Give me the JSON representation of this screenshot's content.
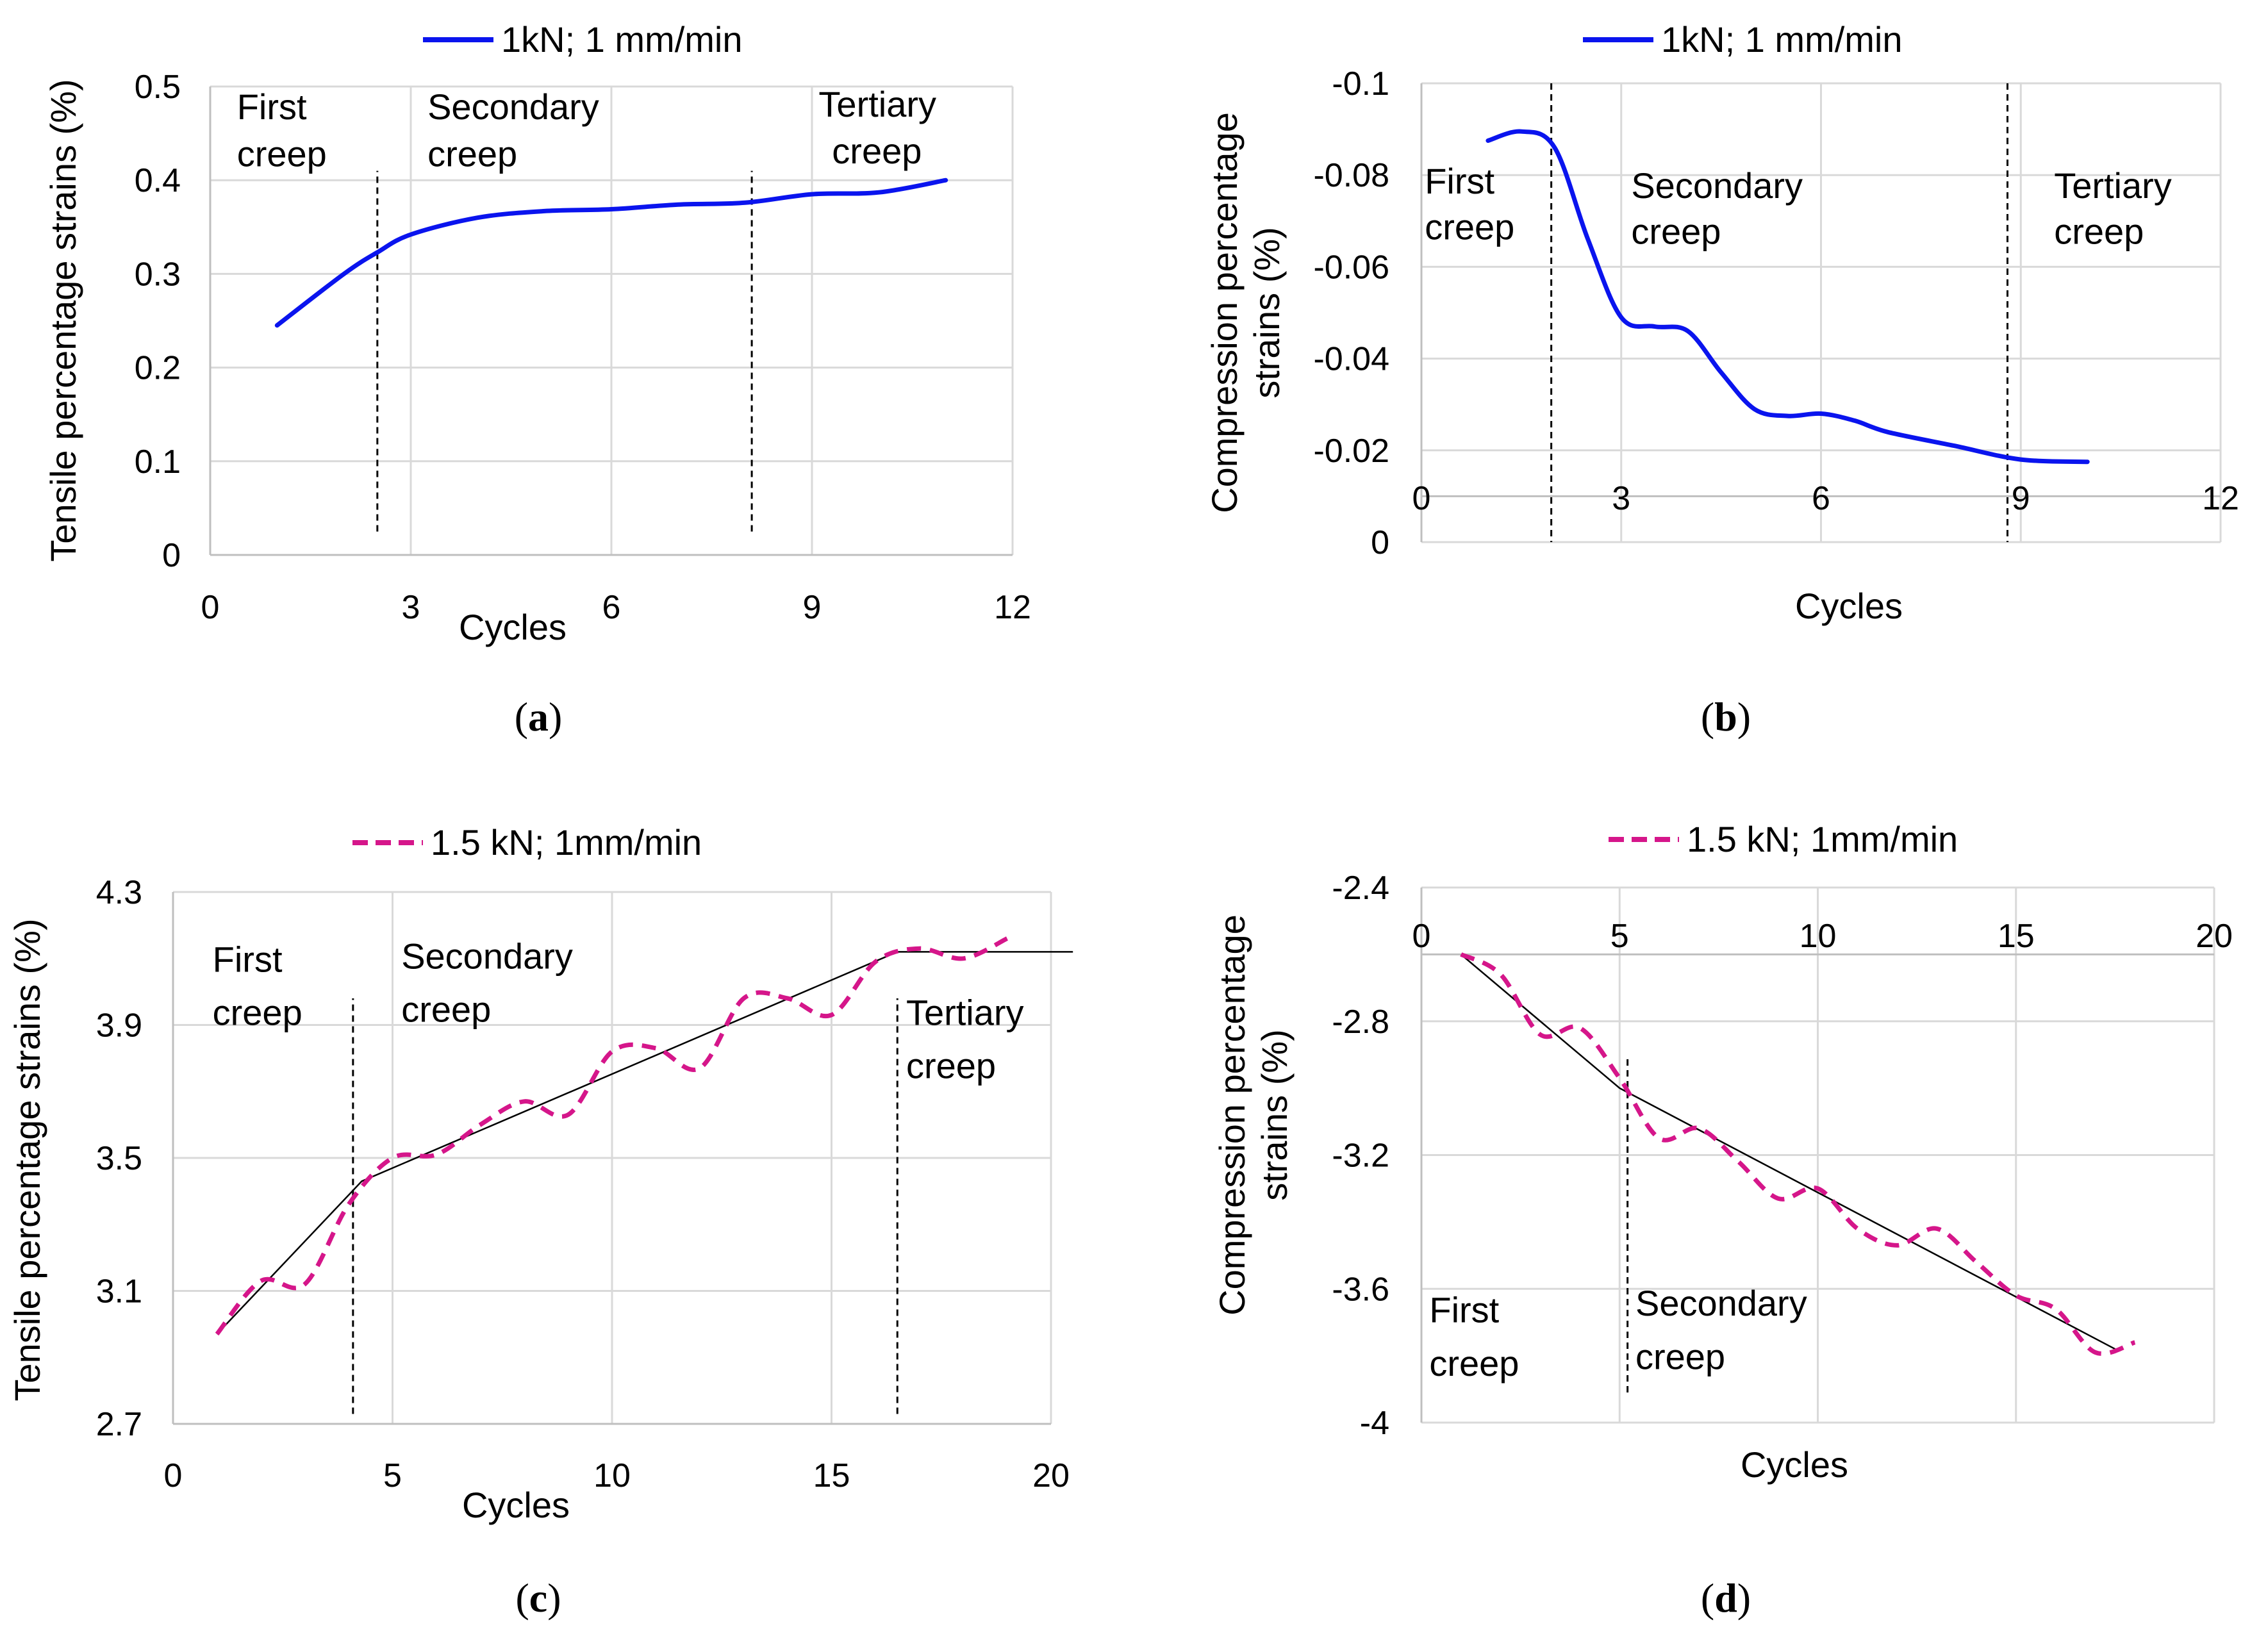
{
  "colors": {
    "series_solid": "#0a14ee",
    "series_dashed": "#d5168a",
    "grid": "#d9d9d9",
    "axis": "#bfbfbf",
    "text": "#000000"
  },
  "chart_data": [
    {
      "type": "line",
      "panel_label": "a",
      "title": "",
      "xlabel": "Cycles",
      "ylabel": "Tensile percentage strains (%)",
      "xlim": [
        0,
        12
      ],
      "ylim": [
        0,
        0.5
      ],
      "x_ticks": [
        0,
        3,
        6,
        9,
        12
      ],
      "y_ticks": [
        0,
        0.1,
        0.2,
        0.3,
        0.4,
        0.5
      ],
      "y_tick_labels": [
        "0",
        "0.1",
        "0.2",
        "0.3",
        "0.4",
        "0.5"
      ],
      "grid": true,
      "legend": "top",
      "series": [
        {
          "name": "1kN; 1 mm/min",
          "style": "solid",
          "color": "#0a14ee",
          "x": [
            1,
            2,
            2.5,
            3,
            4,
            5,
            6,
            7,
            8,
            9,
            10,
            11
          ],
          "y": [
            0.245,
            0.3,
            0.323,
            0.342,
            0.36,
            0.367,
            0.369,
            0.374,
            0.376,
            0.385,
            0.387,
            0.4
          ]
        }
      ],
      "trend_lines": [],
      "vlines": [
        2.5,
        8.1
      ],
      "vline_range": [
        0.025,
        0.41
      ],
      "annotations": [
        {
          "text": "First",
          "x": 0.4,
          "y": 0.465
        },
        {
          "text": "creep",
          "x": 0.4,
          "y": 0.415
        },
        {
          "text": "Secondary",
          "x": 3.25,
          "y": 0.465
        },
        {
          "text": "creep",
          "x": 3.25,
          "y": 0.415
        },
        {
          "text": "Tertiary",
          "x": 9.1,
          "y": 0.468
        },
        {
          "text": "creep",
          "x": 9.3,
          "y": 0.418
        }
      ]
    },
    {
      "type": "line",
      "panel_label": "b",
      "title": "",
      "xlabel": "Cycles",
      "ylabel": "Compression percentage strains (%)",
      "xlim": [
        0,
        12
      ],
      "ylim": [
        0,
        -0.1
      ],
      "x_axis_at_y": -0.01,
      "x_ticks": [
        0,
        3,
        6,
        9,
        12
      ],
      "y_ticks": [
        0,
        -0.02,
        -0.04,
        -0.06,
        -0.08,
        -0.1
      ],
      "y_tick_labels": [
        "0",
        "-0.02",
        "-0.04",
        "-0.06",
        "-0.08",
        "-0.1"
      ],
      "grid": true,
      "legend": "top",
      "series": [
        {
          "name": "1kN; 1 mm/min",
          "style": "solid",
          "color": "#0a14ee",
          "x": [
            1,
            1.5,
            2,
            2.5,
            3,
            3.5,
            4,
            4.5,
            5,
            5.5,
            6,
            6.5,
            7,
            8,
            9,
            10
          ],
          "y": [
            -0.0875,
            -0.0895,
            -0.086,
            -0.066,
            -0.049,
            -0.047,
            -0.046,
            -0.037,
            -0.029,
            -0.0275,
            -0.028,
            -0.0265,
            -0.024,
            -0.021,
            -0.018,
            -0.0175
          ]
        }
      ],
      "trend_lines": [],
      "vlines": [
        1.95,
        8.8
      ],
      "vline_range": [
        -0.1,
        0
      ],
      "annotations": [
        {
          "text": "First",
          "x": 0.05,
          "y": -0.076
        },
        {
          "text": "creep",
          "x": 0.05,
          "y": -0.066
        },
        {
          "text": "Secondary",
          "x": 3.15,
          "y": -0.075
        },
        {
          "text": "creep",
          "x": 3.15,
          "y": -0.065
        },
        {
          "text": "Tertiary",
          "x": 9.5,
          "y": -0.075
        },
        {
          "text": "creep",
          "x": 9.5,
          "y": -0.065
        }
      ]
    },
    {
      "type": "line",
      "panel_label": "c",
      "title": "",
      "xlabel": "Cycles",
      "ylabel": "Tensile percentage strains (%)",
      "xlim": [
        0,
        20
      ],
      "ylim": [
        2.7,
        4.3
      ],
      "x_ticks": [
        0,
        5,
        10,
        15,
        20
      ],
      "y_ticks": [
        2.7,
        3.1,
        3.5,
        3.9,
        4.3
      ],
      "y_tick_labels": [
        "2.7",
        "3.1",
        "3.5",
        "3.9",
        "4.3"
      ],
      "grid": true,
      "legend": "top",
      "series": [
        {
          "name": "1.5 kN; 1mm/min",
          "style": "dashed",
          "color": "#d5168a",
          "x": [
            1,
            2,
            3,
            4,
            5,
            6,
            7,
            8,
            9,
            10,
            11,
            12,
            13,
            14,
            15,
            16,
            17,
            18,
            19
          ],
          "y": [
            2.97,
            3.13,
            3.12,
            3.36,
            3.5,
            3.51,
            3.6,
            3.67,
            3.63,
            3.82,
            3.83,
            3.77,
            3.98,
            3.98,
            3.93,
            4.09,
            4.13,
            4.1,
            4.16
          ]
        }
      ],
      "trend_lines": [
        [
          [
            1,
            2.97
          ],
          [
            4.3,
            3.43
          ],
          [
            16.5,
            4.12
          ],
          [
            20.5,
            4.12
          ]
        ]
      ],
      "vlines": [
        4.1,
        16.5
      ],
      "vline_range": [
        2.73,
        3.98
      ],
      "annotations": [
        {
          "text": "First",
          "x": 0.9,
          "y": 4.06
        },
        {
          "text": "creep",
          "x": 0.9,
          "y": 3.9
        },
        {
          "text": "Secondary",
          "x": 5.2,
          "y": 4.07
        },
        {
          "text": "creep",
          "x": 5.2,
          "y": 3.91
        },
        {
          "text": "Tertiary",
          "x": 16.7,
          "y": 3.9
        },
        {
          "text": "creep",
          "x": 16.7,
          "y": 3.74
        }
      ]
    },
    {
      "type": "line",
      "panel_label": "d",
      "title": "",
      "xlabel": "Cycles",
      "ylabel": "Compression percentage strains (%)",
      "xlim": [
        0,
        20
      ],
      "ylim": [
        -4,
        -2.4
      ],
      "x_axis_at_y": -2.6,
      "x_ticks": [
        0,
        5,
        10,
        15,
        20
      ],
      "y_ticks": [
        -4,
        -3.6,
        -3.2,
        -2.8,
        -2.4
      ],
      "y_tick_labels": [
        "-4",
        "-3.6",
        "-3.2",
        "-2.8",
        "-2.4"
      ],
      "grid": true,
      "legend": "top",
      "series": [
        {
          "name": "1.5 kN; 1mm/min",
          "style": "dashed",
          "color": "#d5168a",
          "x": [
            1,
            2,
            3,
            4,
            5,
            6,
            7,
            8,
            9,
            10,
            11,
            12,
            13,
            14,
            15,
            16,
            17,
            18
          ],
          "y": [
            -2.6,
            -2.66,
            -2.84,
            -2.82,
            -2.97,
            -3.15,
            -3.12,
            -3.22,
            -3.33,
            -3.3,
            -3.42,
            -3.47,
            -3.42,
            -3.52,
            -3.62,
            -3.66,
            -3.79,
            -3.76
          ]
        }
      ],
      "trend_lines": [
        [
          [
            1,
            -2.6
          ],
          [
            5,
            -3.0
          ],
          [
            17.5,
            -3.78
          ]
        ]
      ],
      "vlines": [
        5.2
      ],
      "vline_range": [
        -3.91,
        -2.9
      ],
      "annotations": [
        {
          "text": "First",
          "x": 0.2,
          "y": -3.7
        },
        {
          "text": "creep",
          "x": 0.2,
          "y": -3.86
        },
        {
          "text": "Secondary",
          "x": 5.4,
          "y": -3.68
        },
        {
          "text": "creep",
          "x": 5.4,
          "y": -3.84
        }
      ]
    }
  ]
}
